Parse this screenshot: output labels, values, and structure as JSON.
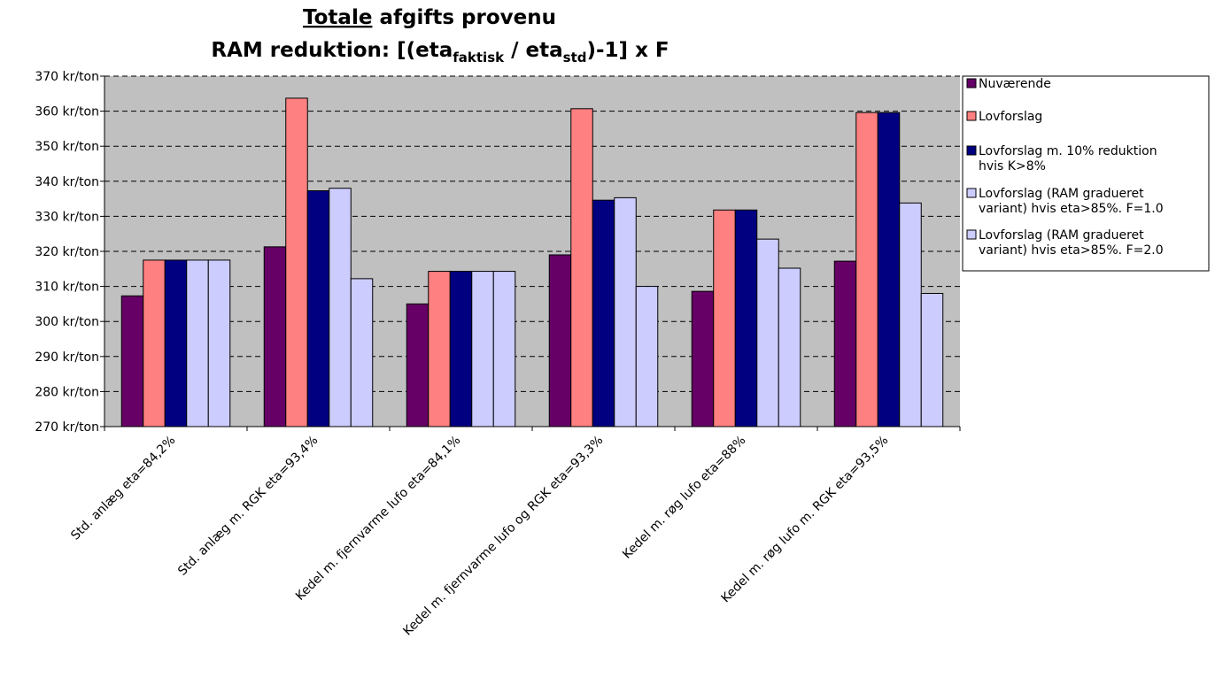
{
  "chart_data": {
    "type": "bar",
    "title": {
      "line1_underlined": "Totale",
      "line1_rest": "afgifts provenu",
      "line2_prefix": "RAM reduktion: [(eta",
      "line2_sub1": "faktisk",
      "line2_mid": " / eta",
      "line2_sub2": "std",
      "line2_suffix": ")-1]  x F"
    },
    "ylim": [
      270,
      370
    ],
    "y_ticks": [
      "270 kr/ton",
      "280 kr/ton",
      "290 kr/ton",
      "300 kr/ton",
      "310 kr/ton",
      "320 kr/ton",
      "330 kr/ton",
      "340 kr/ton",
      "350 kr/ton",
      "360 kr/ton",
      "370 kr/ton"
    ],
    "y_tick_values": [
      270,
      280,
      290,
      300,
      310,
      320,
      330,
      340,
      350,
      360,
      370
    ],
    "grid": true,
    "legend_position": "top-right",
    "plot_background": "#c0c0c0",
    "categories": [
      "Std. anlæg  eta=84,2%",
      "Std. anlæg m. RGK eta=93,4%",
      "Kedel m. fjernvarme lufo eta=84,1%",
      "Kedel m. fjernvarme lufo og RGK eta=93,3%",
      "Kedel m. røg lufo eta=88%",
      "Kedel m. røg lufo m. RGK eta=93,5%"
    ],
    "series": [
      {
        "name": "Nuværende",
        "legend_lines": [
          "Nuværende"
        ],
        "color": "#660066",
        "values": [
          307.3,
          321.3,
          305.0,
          319.0,
          308.6,
          317.2
        ]
      },
      {
        "name": "Lovforslag",
        "legend_lines": [
          "Lovforslag"
        ],
        "color": "#ff8080",
        "values": [
          317.5,
          363.7,
          314.3,
          360.7,
          331.8,
          359.6
        ]
      },
      {
        "name": "Lovforslag m. 10% reduktion hvis K>8%",
        "legend_lines": [
          "Lovforslag m. 10% reduktion",
          "hvis K>8%"
        ],
        "color": "#000080",
        "values": [
          317.5,
          337.3,
          314.3,
          334.6,
          331.8,
          359.6
        ]
      },
      {
        "name": "Lovforslag (RAM gradueret variant) hvis eta>85%. F=1.0",
        "legend_lines": [
          "Lovforslag (RAM gradueret",
          "variant) hvis eta>85%. F=1.0"
        ],
        "color": "#ccccff",
        "values": [
          317.5,
          338.0,
          314.3,
          335.3,
          323.5,
          333.8
        ]
      },
      {
        "name": "Lovforslag (RAM gradueret variant) hvis eta>85%. F=2.0",
        "legend_lines": [
          "Lovforslag (RAM gradueret",
          "variant) hvis eta>85%. F=2.0"
        ],
        "color": "#ccccff",
        "values": [
          317.5,
          312.2,
          314.3,
          310.0,
          315.2,
          308.0
        ]
      }
    ]
  }
}
